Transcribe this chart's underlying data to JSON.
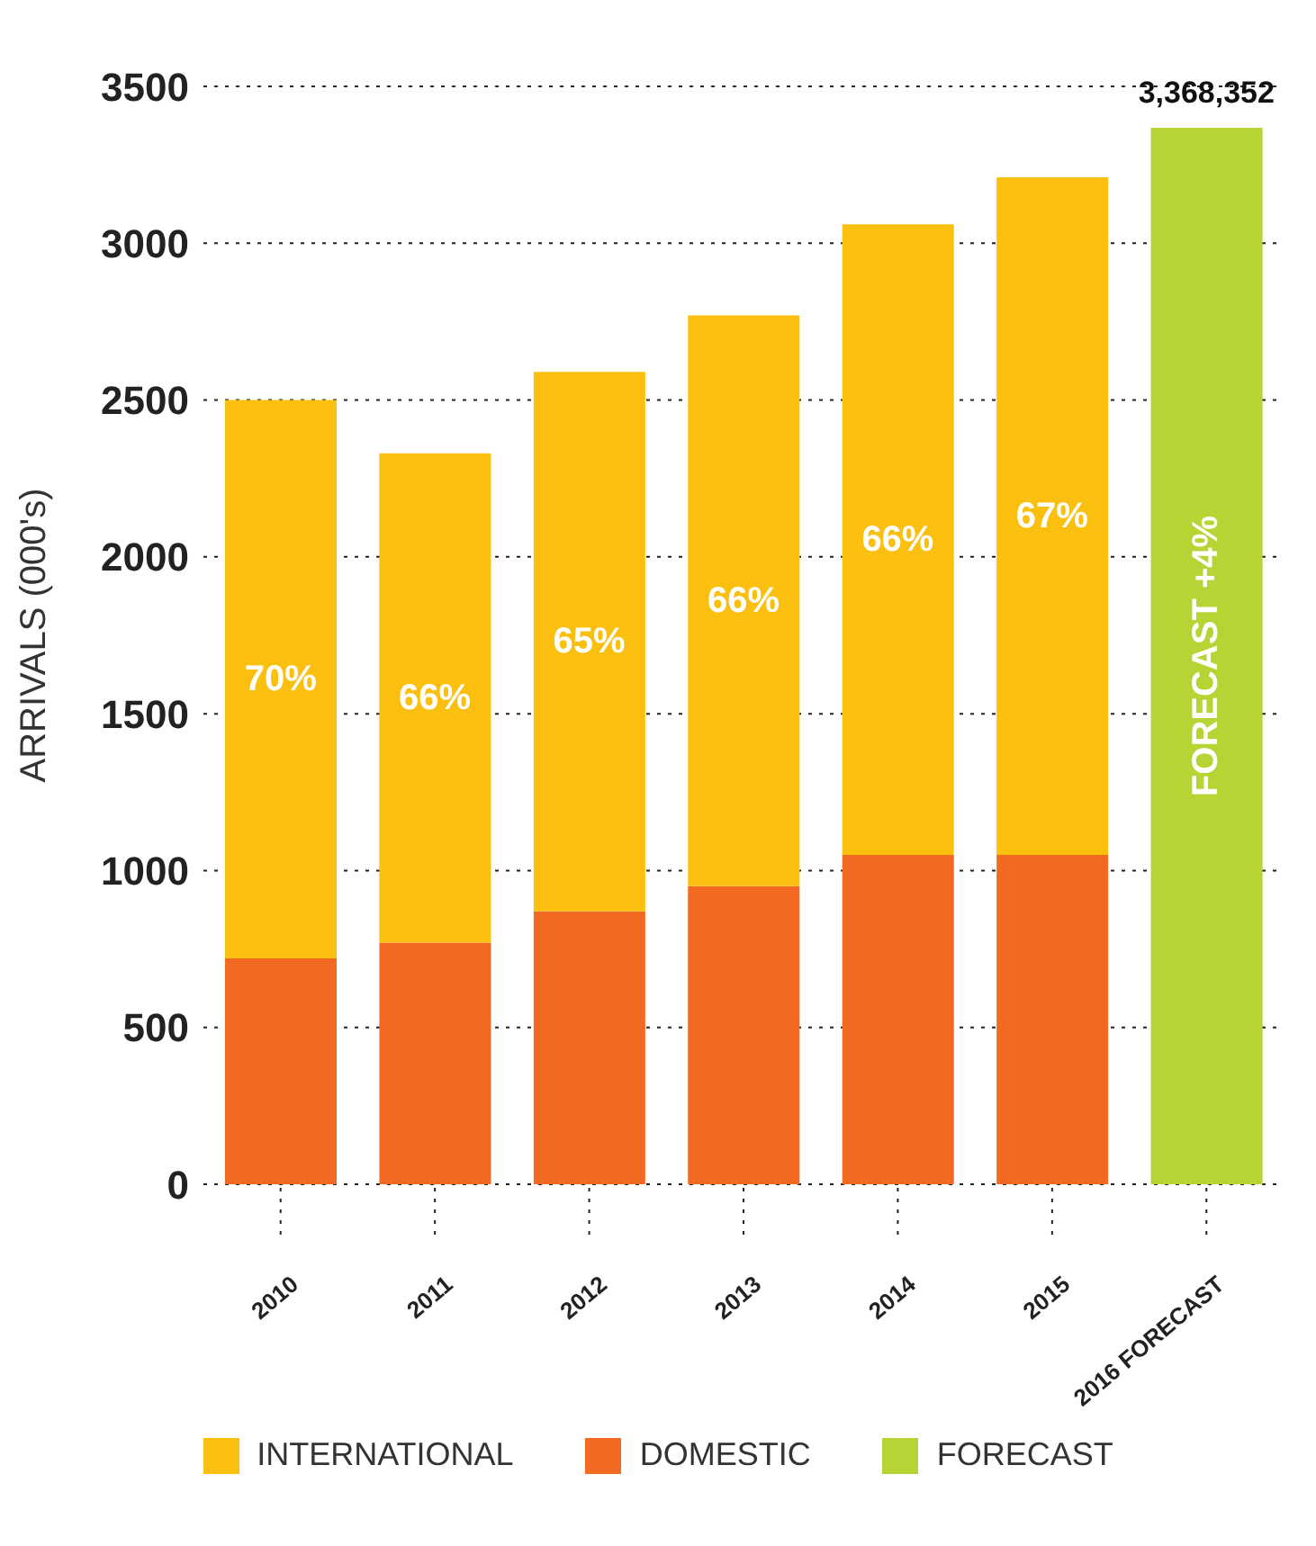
{
  "chart_data": {
    "type": "bar",
    "stacked": true,
    "ylabel": "ARRIVALS (000's)",
    "categories": [
      "2010",
      "2011",
      "2012",
      "2013",
      "2014",
      "2015",
      "2016 FORECAST"
    ],
    "series": [
      {
        "name": "DOMESTIC",
        "color": "#f26a21",
        "values": [
          720,
          770,
          870,
          950,
          1050,
          1050,
          null
        ]
      },
      {
        "name": "INTERNATIONAL",
        "color": "#fbbf10",
        "values": [
          1780,
          1560,
          1720,
          1820,
          2010,
          2160,
          null
        ]
      },
      {
        "name": "FORECAST",
        "color": "#b6d433",
        "values": [
          null,
          null,
          null,
          null,
          null,
          null,
          3368
        ]
      }
    ],
    "ylim": [
      0,
      3500
    ],
    "yticks": [
      0,
      500,
      1000,
      1500,
      2000,
      2500,
      3000,
      3500
    ],
    "grid": "y",
    "legend": "bottom",
    "annotations": [
      "70%",
      "66%",
      "65%",
      "66%",
      "66%",
      "67%",
      "FORECAST +4%",
      {
        "text": "3,368,352",
        "x": "2016 FORECAST",
        "y": 3368
      }
    ]
  }
}
